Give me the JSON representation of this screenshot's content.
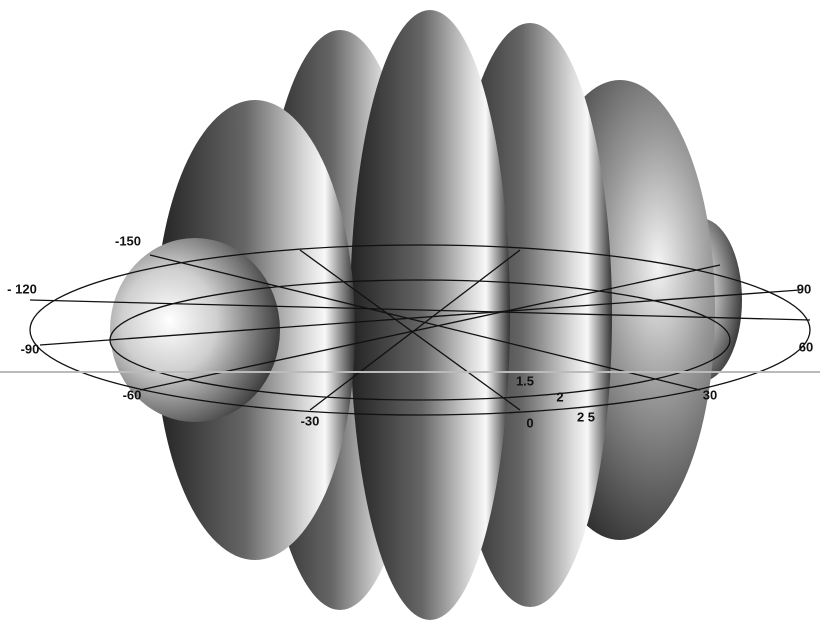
{
  "angle_labels": [
    "-150",
    "- 120",
    "-90",
    "-60",
    "-30",
    "0",
    "30",
    "60",
    "90"
  ],
  "radial_labels": [
    "1.5",
    "2",
    "2 5"
  ]
}
